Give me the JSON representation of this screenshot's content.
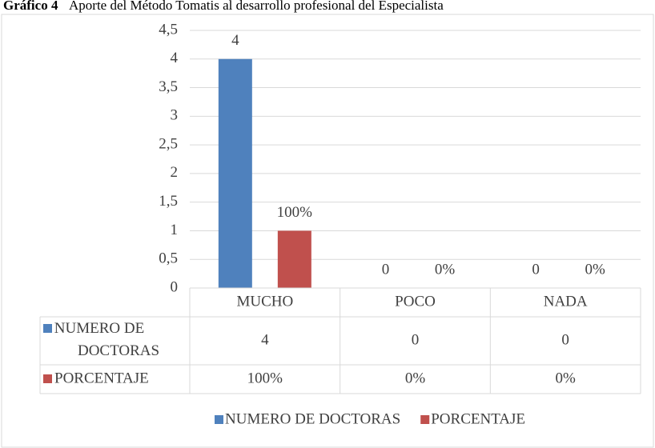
{
  "chart_data": {
    "type": "bar",
    "title": "Gráfico 4",
    "subtitle": "Aporte del Método Tomatis al desarrollo profesional del Especialista",
    "categories": [
      "MUCHO",
      "POCO",
      "NADA"
    ],
    "series": [
      {
        "name": "NUMERO DE DOCTORAS",
        "color": "#4f81bd",
        "values": [
          4,
          0,
          0
        ]
      },
      {
        "name": "PORCENTAJE",
        "color": "#c0504d",
        "values": [
          1,
          0,
          0
        ],
        "value_labels": [
          "100%",
          "0%",
          "0%"
        ]
      }
    ],
    "ylim": [
      0,
      4.5
    ],
    "yticks": [
      0,
      {
        "value": 0.5,
        "label": "0,5"
      },
      1,
      {
        "value": 1.5,
        "label": "1,5"
      },
      2,
      {
        "value": 2.5,
        "label": "2,5"
      },
      3,
      {
        "value": 3.5,
        "label": "3,5"
      },
      4,
      {
        "value": 4.5,
        "label": "4,5"
      }
    ],
    "grid": true,
    "legend": "bottom"
  }
}
